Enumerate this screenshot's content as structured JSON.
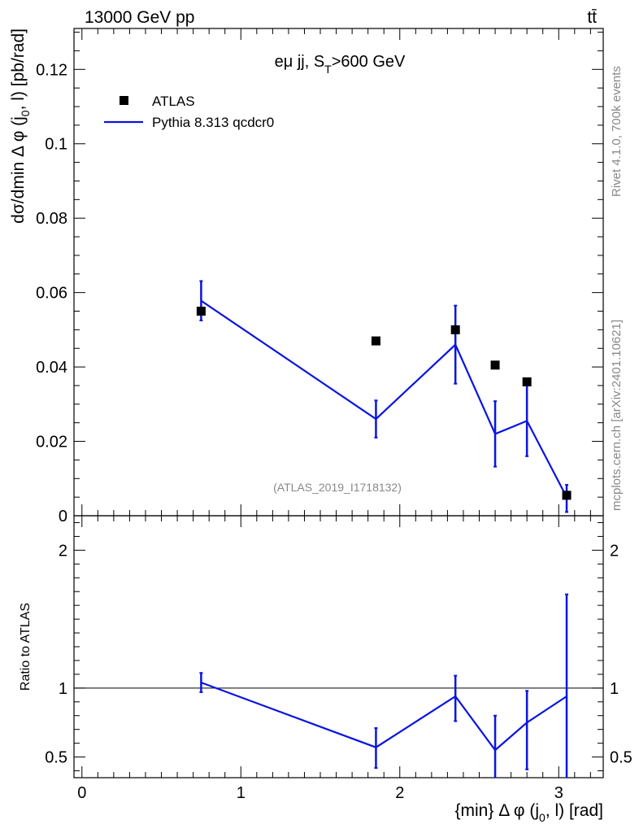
{
  "header": {
    "energy_label": "13000 GeV pp",
    "process_label": "tt̄",
    "side_label_top": "Rivet 4.1.0,  700k events",
    "side_label_bottom": "mcplots.cern.ch [arXiv:2401.10621]"
  },
  "chart_data": {
    "type": "scatter",
    "title": "eμ jj, S_T>600 GeV",
    "title_main": "eμ jj, S",
    "title_sub": "T",
    "title_tail": ">600 GeV",
    "analysis_id": "(ATLAS_2019_I1718132)",
    "xlabel": "{min} Δ φ (j0, l) [rad]",
    "xlabel_parts": {
      "pre": "{min} Δ φ (j",
      "sub": "0",
      "post": ", l) [rad]"
    },
    "ylabel": "dσ/dmin Δ φ (j0, l) [pb/rad]",
    "ylabel_parts": {
      "pre": "dσ/dmin Δ φ (j",
      "sub": "0",
      "post": ", l) [pb/rad]"
    },
    "ratio_ylabel": "Ratio to ATLAS",
    "xlim": [
      -0.05,
      3.28
    ],
    "ylim": [
      0,
      0.131
    ],
    "ratio_ylim": [
      0.35,
      2.25
    ],
    "x_ticks": [
      0,
      1,
      2,
      3
    ],
    "x_tick_labels": [
      "0",
      "1",
      "2",
      "3"
    ],
    "y_ticks": [
      0,
      0.02,
      0.04,
      0.06,
      0.08,
      0.1,
      0.12
    ],
    "y_tick_labels": [
      "0",
      "0.02",
      "0.04",
      "0.06",
      "0.08",
      "0.1",
      "0.12"
    ],
    "ratio_ticks": [
      0.5,
      1,
      2
    ],
    "ratio_tick_labels": [
      "0.5",
      "1",
      "2"
    ],
    "legend": {
      "placement": "top-left",
      "entries": [
        "ATLAS",
        "Pythia 8.313 qcdcr0"
      ]
    },
    "series": [
      {
        "name": "ATLAS",
        "x": [
          0.75,
          1.85,
          2.35,
          2.6,
          2.8,
          3.05
        ],
        "y": [
          0.055,
          0.047,
          0.05,
          0.0405,
          0.036,
          0.0055
        ]
      },
      {
        "name": "Pythia 8.313 qcdcr0",
        "x": [
          0.75,
          1.85,
          2.35,
          2.6,
          2.8,
          3.05
        ],
        "y": [
          0.0578,
          0.026,
          0.046,
          0.022,
          0.0255,
          0.005
        ],
        "yerr_low": [
          0.0053,
          0.005,
          0.0105,
          0.0088,
          0.0095,
          0.004
        ],
        "yerr_high": [
          0.0053,
          0.005,
          0.0105,
          0.0088,
          0.0095,
          0.0033
        ]
      }
    ],
    "ratio": {
      "x": [
        0.75,
        1.85,
        2.35,
        2.6,
        2.8,
        3.05
      ],
      "y": [
        1.04,
        0.57,
        0.94,
        0.55,
        0.75,
        0.94
      ],
      "err_low": [
        0.07,
        0.15,
        0.18,
        0.25,
        0.34,
        0.62
      ],
      "err_high": [
        0.07,
        0.14,
        0.15,
        0.25,
        0.23,
        0.74
      ]
    }
  }
}
